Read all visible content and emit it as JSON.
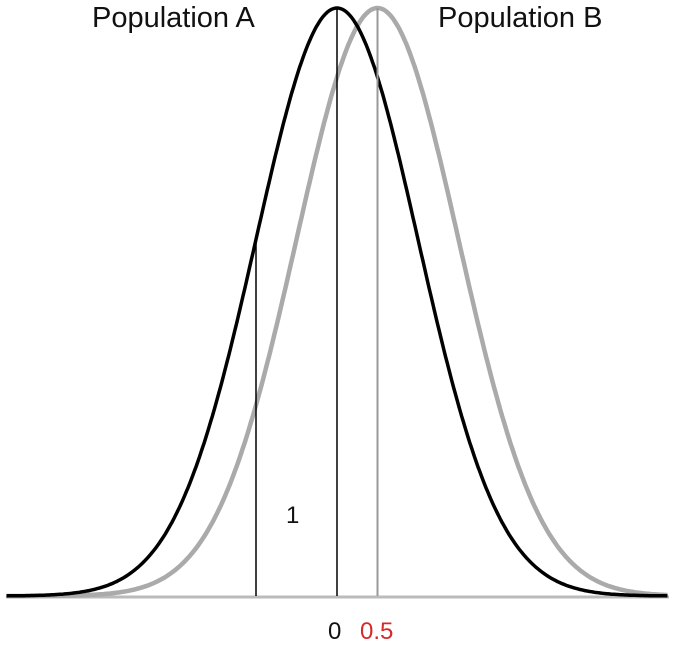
{
  "chart_data": {
    "type": "line",
    "title": "",
    "xlabel": "",
    "ylabel": "",
    "series": [
      {
        "name": "Population A",
        "mean": 0,
        "sd": 1,
        "color": "#000000"
      },
      {
        "name": "Population B",
        "mean": 0.5,
        "sd": 1,
        "color": "#aaaaaa"
      }
    ],
    "x_range": [
      -4,
      4
    ],
    "annotations": [
      {
        "text": "1",
        "description": "one standard deviation from mean of Population A (vertical line at x = -1)"
      },
      {
        "text": "0",
        "description": "mean of Population A",
        "color": "#000000"
      },
      {
        "text": "0.5",
        "description": "mean of Population B",
        "color": "#d42a2a"
      }
    ],
    "grid": false,
    "legend": "inline labels above curves"
  },
  "labels": {
    "pop_a": "Population A",
    "pop_b": "Population B",
    "sd_label": "1",
    "tick_zero": "0",
    "tick_half": "0.5"
  },
  "colors": {
    "pop_a": "#000000",
    "pop_b": "#aaaaaa",
    "baseline": "#bbbbbb",
    "highlight": "#d42a2a"
  }
}
